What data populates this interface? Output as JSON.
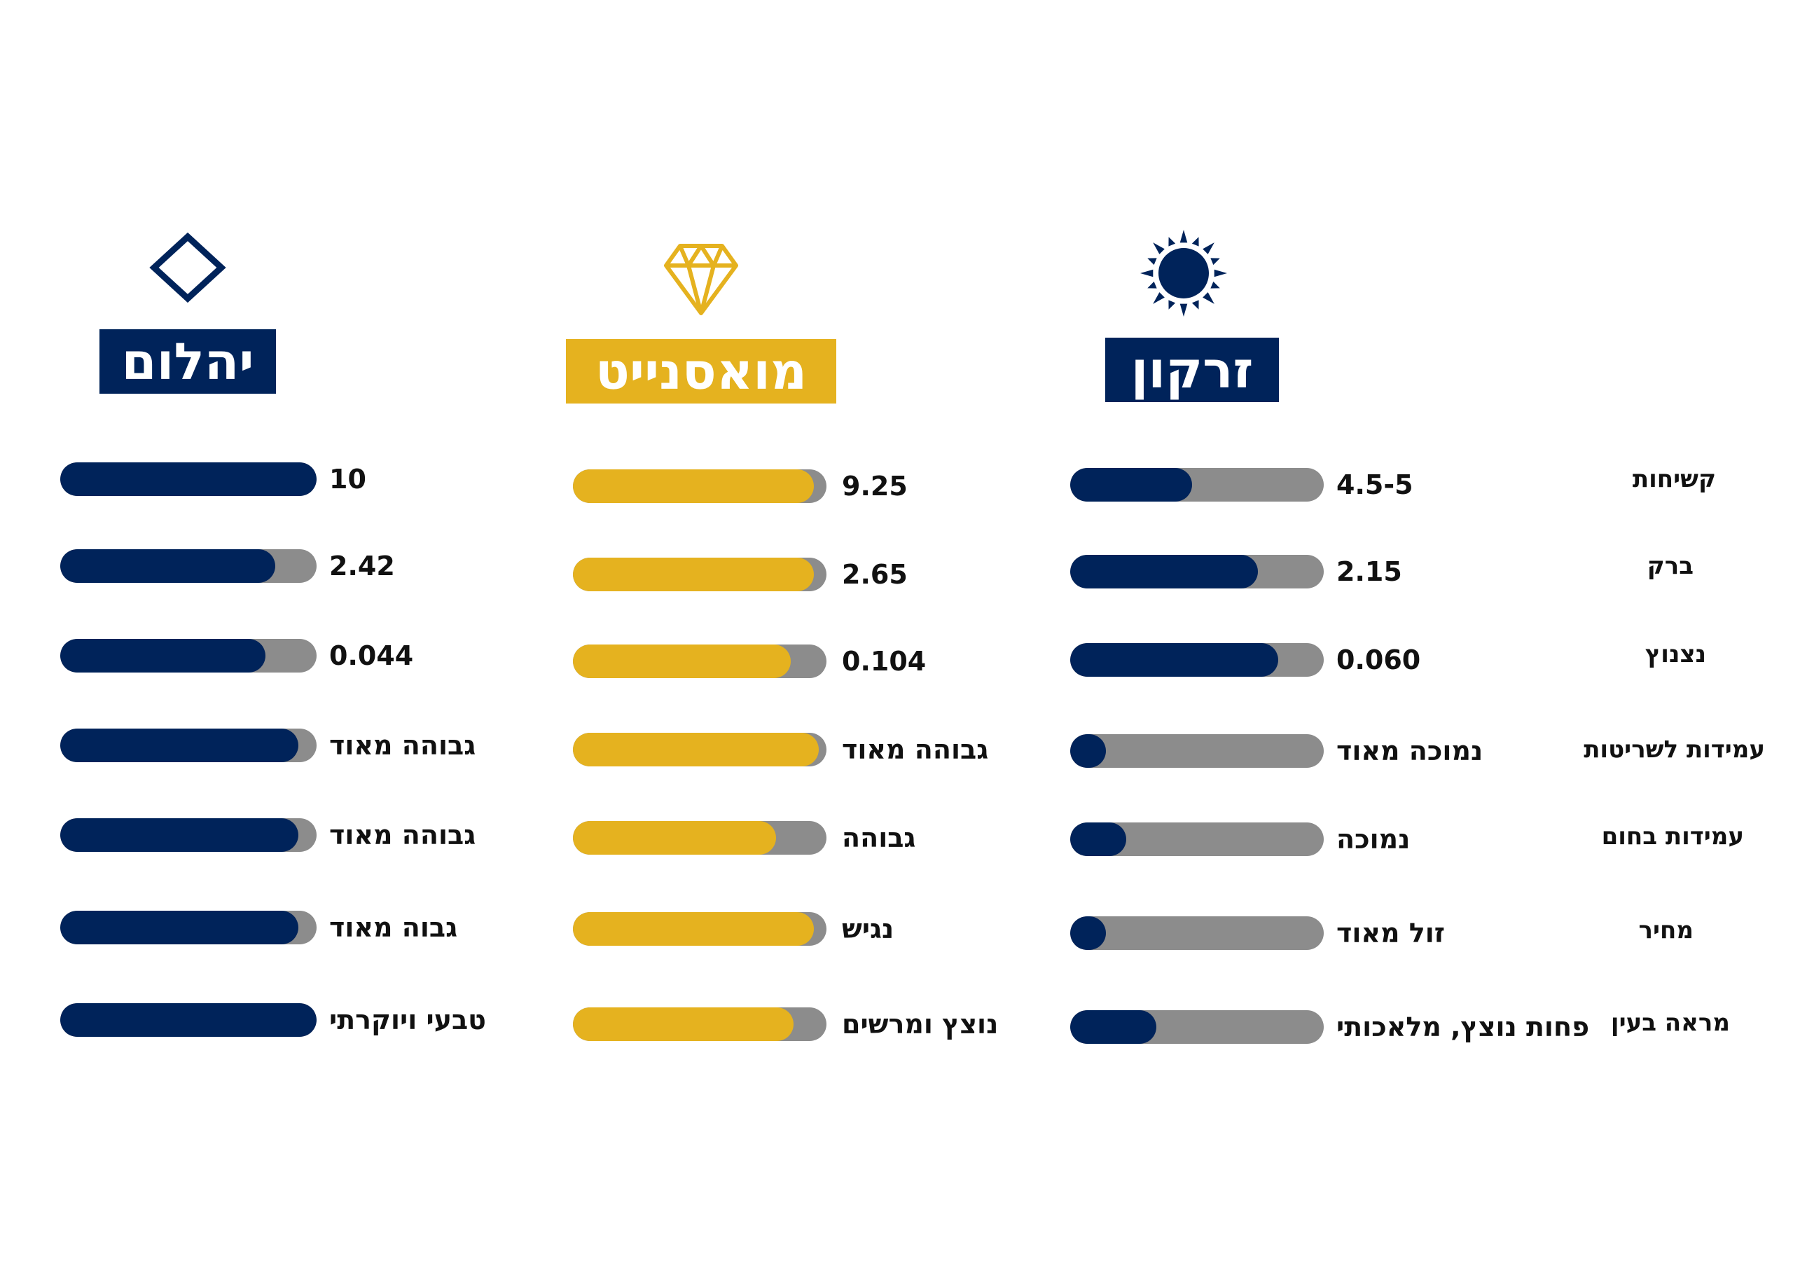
{
  "colors": {
    "navy": "#00235a",
    "gold": "#e5b21f",
    "track": "#8c8c8c"
  },
  "row_labels": [
    "קשיחות",
    "ברק",
    "נצנוץ",
    "עמידות לשריטות",
    "עמידות בחום",
    "מחיר",
    "מראה בעין"
  ],
  "columns": [
    {
      "title": "זרקון",
      "icon": "sun-icon",
      "color": "navy",
      "values": [
        "4.5-5",
        "2.15",
        "0.060",
        "נמוכה מאוד",
        "נמוכה",
        "זול מאוד",
        "פחות נוצץ, מלאכותי"
      ],
      "fills": [
        0.48,
        0.74,
        0.82,
        0.14,
        0.22,
        0.14,
        0.34
      ]
    },
    {
      "title": "מואסנייט",
      "icon": "gem-icon",
      "color": "gold",
      "values": [
        "9.25",
        "2.65",
        "0.104",
        "גבוהה מאוד",
        "גבוהה",
        "נגיש",
        "נוצץ ומרשים"
      ],
      "fills": [
        0.95,
        0.95,
        0.86,
        0.97,
        0.8,
        0.95,
        0.87
      ]
    },
    {
      "title": "יהלום",
      "icon": "diamond-outline-icon",
      "color": "navy",
      "values": [
        "10",
        "2.42",
        "0.044",
        "גבוהה מאוד",
        "גבוהה מאוד",
        "גבוה מאוד",
        "טבעי ויוקרתי"
      ],
      "fills": [
        1.0,
        0.84,
        0.8,
        0.93,
        0.93,
        0.93,
        1.0
      ]
    }
  ],
  "chart_data": {
    "type": "bar",
    "categories": [
      "קשיחות",
      "ברק",
      "נצנוץ",
      "עמידות לשריטות",
      "עמידות בחום",
      "מחיר",
      "מראה בעין"
    ],
    "series": [
      {
        "name": "זרקון",
        "values": [
          0.48,
          0.74,
          0.82,
          0.14,
          0.22,
          0.14,
          0.34
        ]
      },
      {
        "name": "מואסנייט",
        "values": [
          0.95,
          0.95,
          0.86,
          0.97,
          0.8,
          0.95,
          0.87
        ]
      },
      {
        "name": "יהלום",
        "values": [
          1.0,
          0.84,
          0.8,
          0.93,
          0.93,
          0.93,
          1.0
        ]
      }
    ],
    "ylim": [
      0,
      1
    ],
    "grid": false,
    "legend": "none"
  }
}
